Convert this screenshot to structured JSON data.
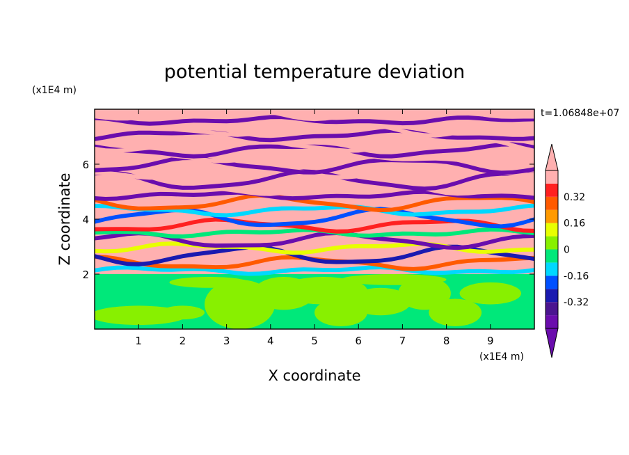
{
  "chart_data": {
    "type": "heatmap",
    "title": "potential temperature deviation",
    "xlabel": "X coordinate",
    "ylabel": "Z coordinate",
    "x_unit": "(x1E4 m)",
    "y_unit": "(x1E4 m)",
    "time_label": "t=1.06848e+07",
    "xlim": [
      0,
      10
    ],
    "ylim": [
      0,
      8
    ],
    "x_ticks": [
      1,
      2,
      3,
      4,
      5,
      6,
      7,
      8,
      9
    ],
    "y_ticks": [
      2,
      4,
      6
    ],
    "colorbar": {
      "levels": [
        -0.48,
        -0.4,
        -0.32,
        -0.24,
        -0.16,
        -0.08,
        0,
        0.08,
        0.16,
        0.24,
        0.32,
        0.4,
        0.48
      ],
      "colors": [
        "#6a0dad",
        "#4b1590",
        "#1a1ab0",
        "#0050ff",
        "#00d8ff",
        "#00e87a",
        "#88f000",
        "#e8ff00",
        "#ff9a00",
        "#ff5a00",
        "#ff2020",
        "#ffb0b0"
      ],
      "tick_labels": [
        "-0.32",
        "-0.16",
        "0",
        "0.16",
        "0.32"
      ],
      "tick_values": [
        -0.32,
        -0.16,
        0,
        0.16,
        0.32
      ],
      "extend": "both"
    },
    "field": {
      "description_of_regions": "lower layer z<2: near-zero values (green/yellow-green); upper layer z>2: alternating strong positive (pink) and negative (purple) horizontal bands",
      "lower_layer_top_z": 2.0
    }
  }
}
